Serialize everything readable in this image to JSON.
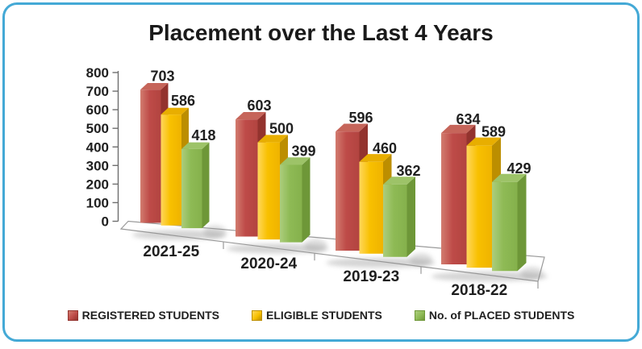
{
  "card": {
    "border_color": "#44a9d6"
  },
  "chart_data": {
    "type": "bar",
    "style": "3d-clustered-column",
    "title": "Placement over the Last 4 Years",
    "categories": [
      "2021-25",
      "2020-24",
      "2019-23",
      "2018-22"
    ],
    "series": [
      {
        "name": "REGISTERED STUDENTS",
        "values": [
          703,
          603,
          596,
          634
        ],
        "color": "#be4b48",
        "color_light": "#d27c6f",
        "color_front_dark": "#b24440",
        "color_top": "#c6655a",
        "color_dark": "#93332e"
      },
      {
        "name": "ELIGIBLE STUDENTS",
        "values": [
          586,
          500,
          460,
          589
        ],
        "color": "#f8c000",
        "color_light": "#ffd75c",
        "color_front_dark": "#efb300",
        "color_top": "#e8ae00",
        "color_dark": "#bc8e00"
      },
      {
        "name": "No. of PLACED STUDENTS",
        "values": [
          418,
          399,
          362,
          429
        ],
        "color": "#8eba55",
        "color_light": "#accd7d",
        "color_front_dark": "#85b14c",
        "color_top": "#9dc368",
        "color_dark": "#6e9738"
      }
    ],
    "y_axis": {
      "min": 0,
      "max": 800,
      "step": 100,
      "tick_labels": [
        "0",
        "100",
        "200",
        "300",
        "400",
        "500",
        "600",
        "700",
        "800"
      ]
    },
    "legend_position": "bottom",
    "grid": false
  }
}
